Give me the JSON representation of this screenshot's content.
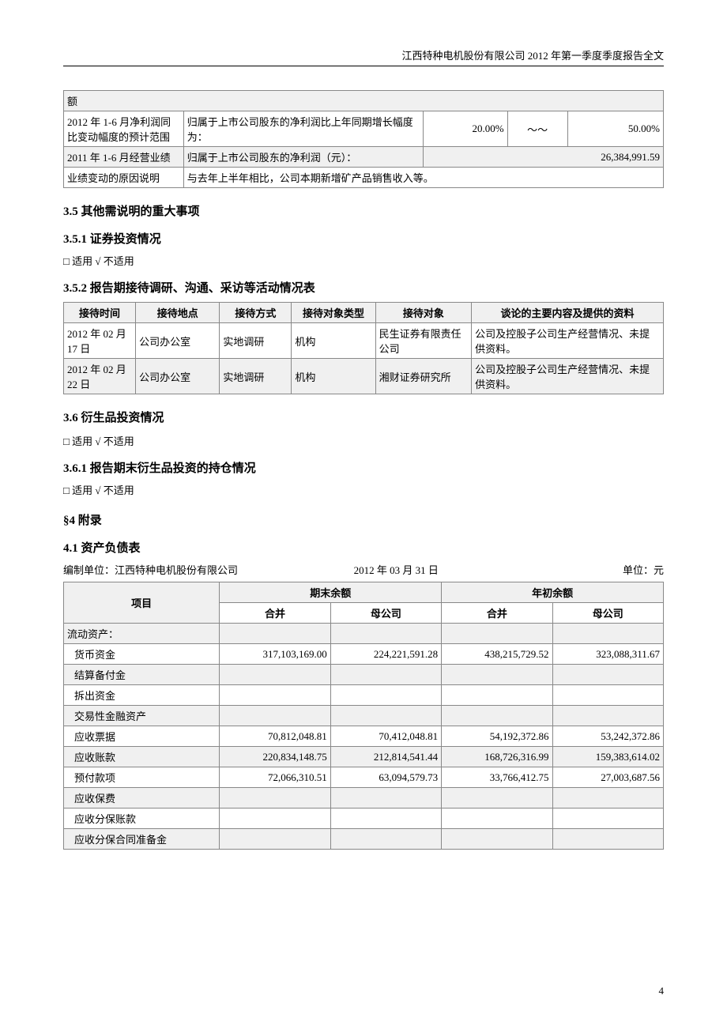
{
  "header": {
    "text": "江西特种电机股份有限公司 2012 年第一季度季度报告全文"
  },
  "summary_table": {
    "rows": [
      {
        "c1": "额",
        "c2": "",
        "c3": "",
        "c4": "",
        "c5": ""
      },
      {
        "c1": "2012 年 1-6 月净利润同比变动幅度的预计范围",
        "c2": "归属于上市公司股东的净利润比上年同期增长幅度为：",
        "c3": "20.00%",
        "c4": "～～",
        "c5": "50.00%"
      },
      {
        "c1": "2011 年 1-6 月经营业绩",
        "c2": "归属于上市公司股东的净利润（元）：",
        "c3": "",
        "c4": "",
        "c5": "26,384,991.59"
      },
      {
        "c1": "业绩变动的原因说明",
        "c2": "与去年上半年相比，公司本期新增矿产品销售收入等。",
        "c3": "",
        "c4": "",
        "c5": ""
      }
    ]
  },
  "sec35": {
    "title": "3.5 其他需说明的重大事项"
  },
  "sec351": {
    "title": "3.5.1 证券投资情况",
    "note": "□ 适用 √ 不适用"
  },
  "sec352": {
    "title": "3.5.2 报告期接待调研、沟通、采访等活动情况表",
    "headers": [
      "接待时间",
      "接待地点",
      "接待方式",
      "接待对象类型",
      "接待对象",
      "谈论的主要内容及提供的资料"
    ],
    "rows": [
      {
        "time": "2012 年 02 月 17 日",
        "place": "公司办公室",
        "method": "实地调研",
        "type": "机构",
        "target": "民生证券有限责任公司",
        "content": "公司及控股子公司生产经营情况、未提供资料。"
      },
      {
        "time": "2012 年 02 月 22 日",
        "place": "公司办公室",
        "method": "实地调研",
        "type": "机构",
        "target": "湘财证券研究所",
        "content": "公司及控股子公司生产经营情况、未提供资料。"
      }
    ]
  },
  "sec36": {
    "title": "3.6 衍生品投资情况",
    "note": "□ 适用 √ 不适用"
  },
  "sec361": {
    "title": "3.6.1 报告期末衍生品投资的持仓情况",
    "note": "□ 适用 √ 不适用"
  },
  "sec4": {
    "title": "§4 附录"
  },
  "sec41": {
    "title": "4.1 资产负债表",
    "unit_left": "编制单位：江西特种电机股份有限公司",
    "unit_center": "2012 年 03 月 31 日",
    "unit_right": "单位：元",
    "headers": {
      "item": "项目",
      "end": "期末余额",
      "begin": "年初余额",
      "cons": "合并",
      "parent": "母公司"
    },
    "rows": [
      {
        "item": "流动资产：",
        "v1": "",
        "v2": "",
        "v3": "",
        "v4": "",
        "indent": false
      },
      {
        "item": "货币资金",
        "v1": "317,103,169.00",
        "v2": "224,221,591.28",
        "v3": "438,215,729.52",
        "v4": "323,088,311.67",
        "indent": true
      },
      {
        "item": "结算备付金",
        "v1": "",
        "v2": "",
        "v3": "",
        "v4": "",
        "indent": true
      },
      {
        "item": "拆出资金",
        "v1": "",
        "v2": "",
        "v3": "",
        "v4": "",
        "indent": true
      },
      {
        "item": "交易性金融资产",
        "v1": "",
        "v2": "",
        "v3": "",
        "v4": "",
        "indent": true
      },
      {
        "item": "应收票据",
        "v1": "70,812,048.81",
        "v2": "70,412,048.81",
        "v3": "54,192,372.86",
        "v4": "53,242,372.86",
        "indent": true
      },
      {
        "item": "应收账款",
        "v1": "220,834,148.75",
        "v2": "212,814,541.44",
        "v3": "168,726,316.99",
        "v4": "159,383,614.02",
        "indent": true
      },
      {
        "item": "预付款项",
        "v1": "72,066,310.51",
        "v2": "63,094,579.73",
        "v3": "33,766,412.75",
        "v4": "27,003,687.56",
        "indent": true
      },
      {
        "item": "应收保费",
        "v1": "",
        "v2": "",
        "v3": "",
        "v4": "",
        "indent": true
      },
      {
        "item": "应收分保账款",
        "v1": "",
        "v2": "",
        "v3": "",
        "v4": "",
        "indent": true
      },
      {
        "item": "应收分保合同准备金",
        "v1": "",
        "v2": "",
        "v3": "",
        "v4": "",
        "indent": true
      }
    ]
  },
  "page_number": "4"
}
